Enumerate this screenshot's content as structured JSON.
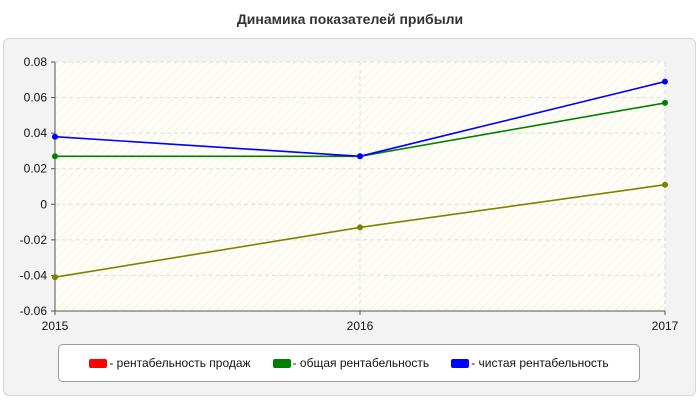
{
  "chart_data": {
    "type": "line",
    "title": "Динамика показателей прибыли",
    "x": [
      "2015",
      "2016",
      "2017"
    ],
    "ylim": [
      -0.06,
      0.08
    ],
    "yticks": [
      "0.08",
      "0.06",
      "0.04",
      "0.02",
      "0",
      "-0.02",
      "-0.04",
      "-0.06"
    ],
    "ytick_values": [
      0.08,
      0.06,
      0.04,
      0.02,
      0,
      -0.02,
      -0.04,
      -0.06
    ],
    "grid": true,
    "legend_position": "bottom",
    "series": [
      {
        "name": "рентабельность продаж",
        "legend_label": "- рентабельность продаж",
        "color": "#808000",
        "values": [
          -0.041,
          -0.013,
          0.011
        ],
        "legend_color": "#ff0000"
      },
      {
        "name": "общая рентабельность",
        "legend_label": "- общая рентабельность",
        "color": "#008000",
        "values": [
          0.027,
          0.027,
          0.057
        ],
        "legend_color": "#008000"
      },
      {
        "name": "чистая рентабельность",
        "legend_label": "- чистая рентабельность",
        "color": "#0000ff",
        "values": [
          0.038,
          0.027,
          0.069
        ],
        "legend_color": "#0000ff"
      }
    ]
  }
}
